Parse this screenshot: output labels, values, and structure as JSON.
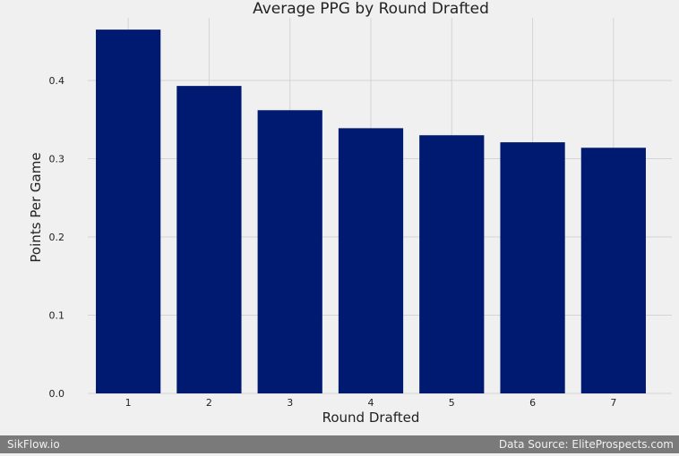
{
  "chart_data": {
    "type": "bar",
    "title": "Average PPG by Round Drafted",
    "xlabel": "Round Drafted",
    "ylabel": "Points Per Game",
    "categories": [
      "1",
      "2",
      "3",
      "4",
      "5",
      "6",
      "7"
    ],
    "values": [
      0.465,
      0.393,
      0.362,
      0.339,
      0.33,
      0.321,
      0.314
    ],
    "ylim": [
      0,
      0.48
    ],
    "yticks": [
      "0.0",
      "0.1",
      "0.2",
      "0.3",
      "0.4"
    ],
    "grid": true,
    "bar_color": "#001a72"
  },
  "footer": {
    "left_text": "SikFlow.io",
    "right_text": "Data Source: EliteProspects.com"
  }
}
